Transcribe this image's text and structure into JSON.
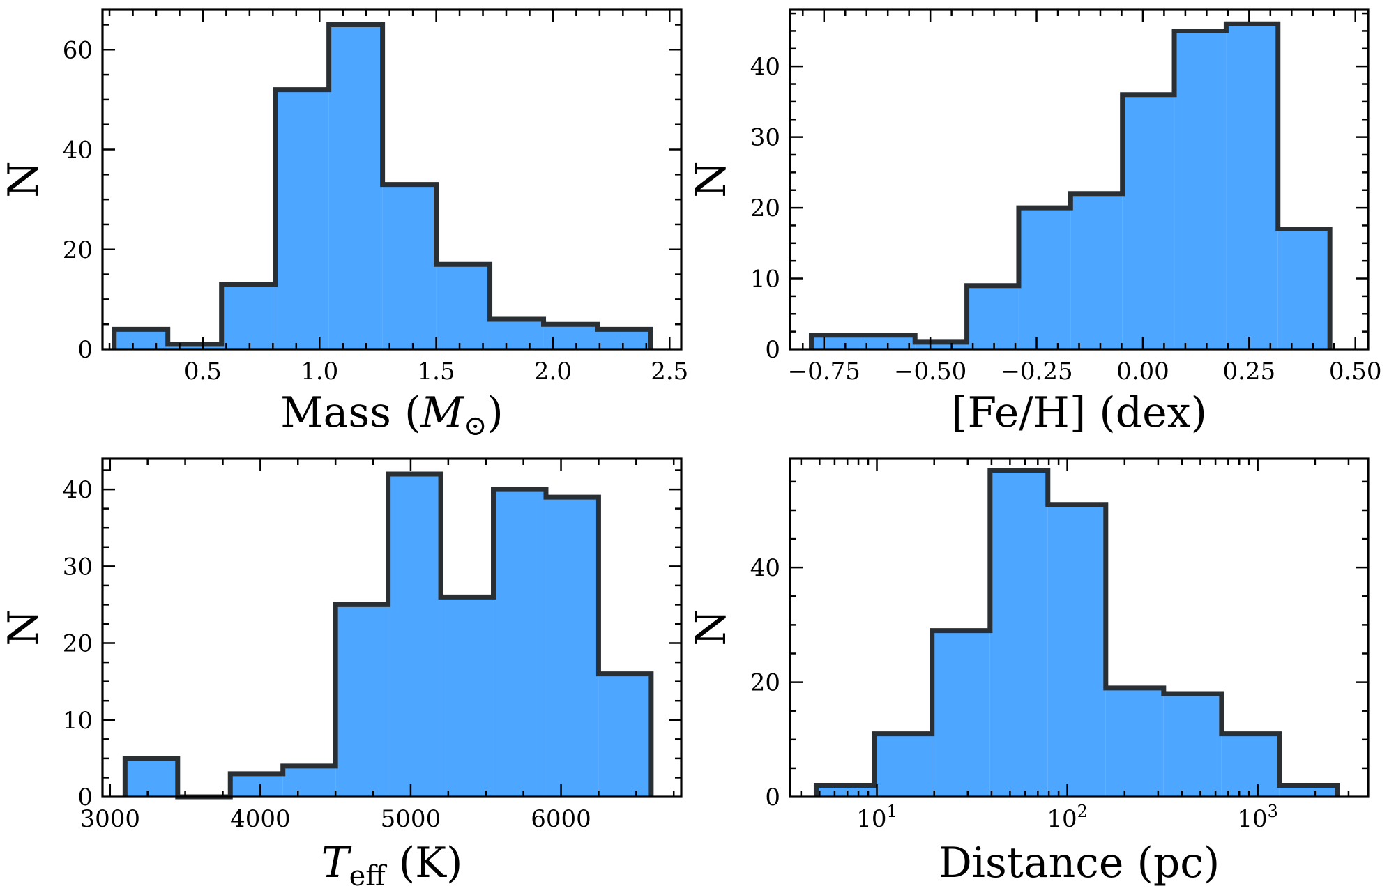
{
  "colors": {
    "bar_fill": "#4DA6FF",
    "bar_edge": "#2A2F33",
    "axis": "#000000"
  },
  "chart_data": [
    {
      "type": "bar",
      "histogram": true,
      "xlabel": {
        "main": "Mass (",
        "symbol": "M",
        "sub": "⊙",
        "tail": ")"
      },
      "ylabel": "N",
      "xlim": [
        0.07,
        2.55
      ],
      "ylim": [
        0,
        68
      ],
      "xticks": [
        0.5,
        1.0,
        1.5,
        2.0,
        2.5
      ],
      "xtick_labels": [
        "0.5",
        "1.0",
        "1.5",
        "2.0",
        "2.5"
      ],
      "xminor": [
        0.1,
        0.2,
        0.3,
        0.4,
        0.6,
        0.7,
        0.8,
        0.9,
        1.1,
        1.2,
        1.3,
        1.4,
        1.6,
        1.7,
        1.8,
        1.9,
        2.1,
        2.2,
        2.3,
        2.4
      ],
      "yticks": [
        0,
        20,
        40,
        60
      ],
      "ytick_labels": [
        "0",
        "20",
        "40",
        "60"
      ],
      "yminor": [
        5,
        10,
        15,
        25,
        30,
        35,
        45,
        50,
        55,
        65
      ],
      "edges": [
        0.12,
        0.35,
        0.58,
        0.81,
        1.04,
        1.27,
        1.5,
        1.73,
        1.96,
        2.19,
        2.42
      ],
      "values": [
        4,
        1,
        13,
        52,
        65,
        33,
        17,
        6,
        5,
        4
      ]
    },
    {
      "type": "bar",
      "histogram": true,
      "xlabel": "[Fe/H] (dex)",
      "ylabel": "N",
      "xlim": [
        -0.83,
        0.53
      ],
      "ylim": [
        0,
        48
      ],
      "xticks": [
        -0.75,
        -0.5,
        -0.25,
        0.0,
        0.25,
        0.5
      ],
      "xtick_labels": [
        "−0.75",
        "−0.50",
        "−0.25",
        "0.00",
        "0.25",
        "0.50"
      ],
      "xminor": [
        -0.8,
        -0.7,
        -0.65,
        -0.6,
        -0.55,
        -0.45,
        -0.4,
        -0.35,
        -0.3,
        -0.2,
        -0.15,
        -0.1,
        -0.05,
        0.05,
        0.1,
        0.15,
        0.2,
        0.3,
        0.35,
        0.4,
        0.45
      ],
      "yticks": [
        0,
        10,
        20,
        30,
        40
      ],
      "ytick_labels": [
        "0",
        "10",
        "20",
        "30",
        "40"
      ],
      "yminor": [
        2.5,
        5,
        7.5,
        12.5,
        15,
        17.5,
        22.5,
        25,
        27.5,
        32.5,
        35,
        37.5,
        42.5,
        45,
        47.5
      ],
      "edges": [
        -0.78,
        -0.658,
        -0.536,
        -0.414,
        -0.292,
        -0.17,
        -0.048,
        0.074,
        0.196,
        0.318,
        0.44
      ],
      "values": [
        2,
        2,
        1,
        9,
        20,
        22,
        36,
        45,
        46,
        17
      ]
    },
    {
      "type": "bar",
      "histogram": true,
      "xlabel": {
        "symbol": "T",
        "sub": "eff",
        "tail": " (K)"
      },
      "ylabel": "N",
      "xlim": [
        2950,
        6800
      ],
      "ylim": [
        0,
        44
      ],
      "xticks": [
        3000,
        4000,
        5000,
        6000
      ],
      "xtick_labels": [
        "3000",
        "4000",
        "5000",
        "6000"
      ],
      "xminor": [
        3250,
        3500,
        3750,
        4250,
        4500,
        4750,
        5250,
        5500,
        5750,
        6250,
        6500,
        6750
      ],
      "yticks": [
        0,
        10,
        20,
        30,
        40
      ],
      "ytick_labels": [
        "0",
        "10",
        "20",
        "30",
        "40"
      ],
      "yminor": [
        2.5,
        5,
        7.5,
        12.5,
        15,
        17.5,
        22.5,
        25,
        27.5,
        32.5,
        35,
        37.5,
        42.5
      ],
      "edges": [
        3100,
        3450,
        3800,
        4150,
        4500,
        4850,
        5200,
        5550,
        5900,
        6250,
        6600
      ],
      "values": [
        5,
        0,
        3,
        4,
        25,
        42,
        26,
        40,
        39,
        16
      ]
    },
    {
      "type": "bar",
      "histogram": true,
      "xscale": "log",
      "xlabel": "Distance (pc)",
      "ylabel": "N",
      "xlim": [
        3.5,
        3800
      ],
      "ylim": [
        0,
        59
      ],
      "xticks": [
        10,
        100,
        1000
      ],
      "xtick_labels": [
        {
          "base": "10",
          "exp": "1"
        },
        {
          "base": "10",
          "exp": "2"
        },
        {
          "base": "10",
          "exp": "3"
        }
      ],
      "xminor": [
        4,
        5,
        6,
        7,
        8,
        9,
        20,
        30,
        40,
        50,
        60,
        70,
        80,
        90,
        200,
        300,
        400,
        500,
        600,
        700,
        800,
        900,
        2000,
        3000
      ],
      "yticks": [
        0,
        20,
        40
      ],
      "ytick_labels": [
        "0",
        "20",
        "40"
      ],
      "yminor": [
        5,
        10,
        15,
        25,
        30,
        35,
        45,
        50,
        55
      ],
      "edges": [
        4.8,
        9.7,
        19.5,
        39.3,
        79.1,
        159.3,
        320.8,
        646,
        1301,
        2620
      ],
      "values": [
        2,
        11,
        29,
        57,
        51,
        19,
        18,
        11,
        2
      ]
    }
  ]
}
